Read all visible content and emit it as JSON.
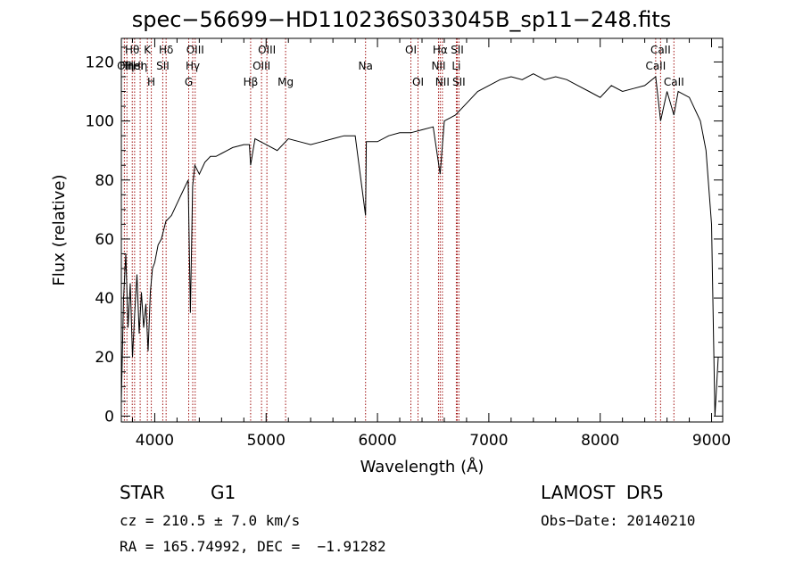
{
  "chart_data": {
    "type": "line",
    "title": "spec−56699−HD110236S033045B_sp11−248.fits",
    "xlabel": "Wavelength (Å)",
    "ylabel": "Flux (relative)",
    "xlim": [
      3700,
      9100
    ],
    "ylim": [
      -2,
      128
    ],
    "xticks": [
      4000,
      5000,
      6000,
      7000,
      8000,
      9000
    ],
    "yticks": [
      0,
      20,
      40,
      60,
      80,
      100,
      120
    ],
    "grid": false,
    "series": [
      {
        "x": [
          3700,
          3720,
          3740,
          3760,
          3780,
          3800,
          3820,
          3840,
          3860,
          3880,
          3900,
          3920,
          3940,
          3960,
          3980,
          4000,
          4030,
          4060,
          4100,
          4150,
          4200,
          4250,
          4300,
          4320,
          4340,
          4360,
          4400,
          4450,
          4500,
          4550,
          4600,
          4650,
          4700,
          4800,
          4850,
          4861,
          4900,
          5000,
          5100,
          5200,
          5300,
          5400,
          5500,
          5600,
          5700,
          5800,
          5893,
          5900,
          6000,
          6100,
          6200,
          6300,
          6400,
          6500,
          6563,
          6600,
          6650,
          6700,
          6800,
          6900,
          7000,
          7100,
          7200,
          7300,
          7400,
          7500,
          7600,
          7700,
          7800,
          7900,
          8000,
          8100,
          8200,
          8300,
          8400,
          8498,
          8542,
          8600,
          8662,
          8700,
          8800,
          8900,
          8950,
          9000,
          9030,
          9060
        ],
        "y": [
          5,
          40,
          55,
          30,
          45,
          20,
          35,
          48,
          28,
          42,
          30,
          38,
          22,
          42,
          50,
          52,
          58,
          60,
          66,
          68,
          72,
          76,
          80,
          35,
          78,
          85,
          82,
          86,
          88,
          88,
          89,
          90,
          91,
          92,
          92,
          85,
          94,
          92,
          90,
          94,
          93,
          92,
          93,
          94,
          95,
          95,
          68,
          93,
          93,
          95,
          96,
          96,
          97,
          98,
          82,
          100,
          101,
          102,
          106,
          110,
          112,
          114,
          115,
          114,
          116,
          114,
          115,
          114,
          112,
          110,
          108,
          112,
          110,
          111,
          112,
          115,
          100,
          110,
          102,
          110,
          108,
          100,
          90,
          65,
          0,
          20
        ]
      }
    ],
    "lines": [
      {
        "x": 3727,
        "row": 1,
        "label": "OII"
      },
      {
        "x": 3750,
        "row": 1,
        "label": "Hη"
      },
      {
        "x": 3798,
        "row": 0,
        "label": "Hθ"
      },
      {
        "x": 3819,
        "row": 1,
        "label": "HeI"
      },
      {
        "x": 3869,
        "row": 1,
        "label": "Hη"
      },
      {
        "x": 3934,
        "row": 0,
        "label": "K"
      },
      {
        "x": 3969,
        "row": 2,
        "label": "H"
      },
      {
        "x": 4072,
        "row": 1,
        "label": "SII"
      },
      {
        "x": 4102,
        "row": 0,
        "label": "Hδ"
      },
      {
        "x": 4305,
        "row": 2,
        "label": "G"
      },
      {
        "x": 4341,
        "row": 1,
        "label": "Hγ"
      },
      {
        "x": 4363,
        "row": 0,
        "label": "OIII"
      },
      {
        "x": 4861,
        "row": 2,
        "label": "Hβ"
      },
      {
        "x": 4959,
        "row": 1,
        "label": "OIII"
      },
      {
        "x": 5007,
        "row": 0,
        "label": "OIII"
      },
      {
        "x": 5175,
        "row": 2,
        "label": "Mg"
      },
      {
        "x": 5893,
        "row": 1,
        "label": "Na"
      },
      {
        "x": 6300,
        "row": 0,
        "label": "OI"
      },
      {
        "x": 6364,
        "row": 2,
        "label": "OI"
      },
      {
        "x": 6548,
        "row": 1,
        "label": "NII"
      },
      {
        "x": 6563,
        "row": 0,
        "label": "Hα"
      },
      {
        "x": 6583,
        "row": 2,
        "label": "NII"
      },
      {
        "x": 6708,
        "row": 1,
        "label": "Li"
      },
      {
        "x": 6716,
        "row": 0,
        "label": "SII"
      },
      {
        "x": 6731,
        "row": 2,
        "label": "SII"
      },
      {
        "x": 8498,
        "row": 1,
        "label": "CaII"
      },
      {
        "x": 8542,
        "row": 0,
        "label": "CaII"
      },
      {
        "x": 8662,
        "row": 2,
        "label": "CaII"
      }
    ],
    "line_color": "#a01010"
  },
  "info": {
    "object_class": "STAR",
    "subclass": "G1",
    "survey": "LAMOST  DR5",
    "cz": "cz = 210.5 ± 7.0 km/s",
    "obs_date": "Obs−Date: 20140210",
    "coords": "RA = 165.74992, DEC =  −1.91282"
  }
}
